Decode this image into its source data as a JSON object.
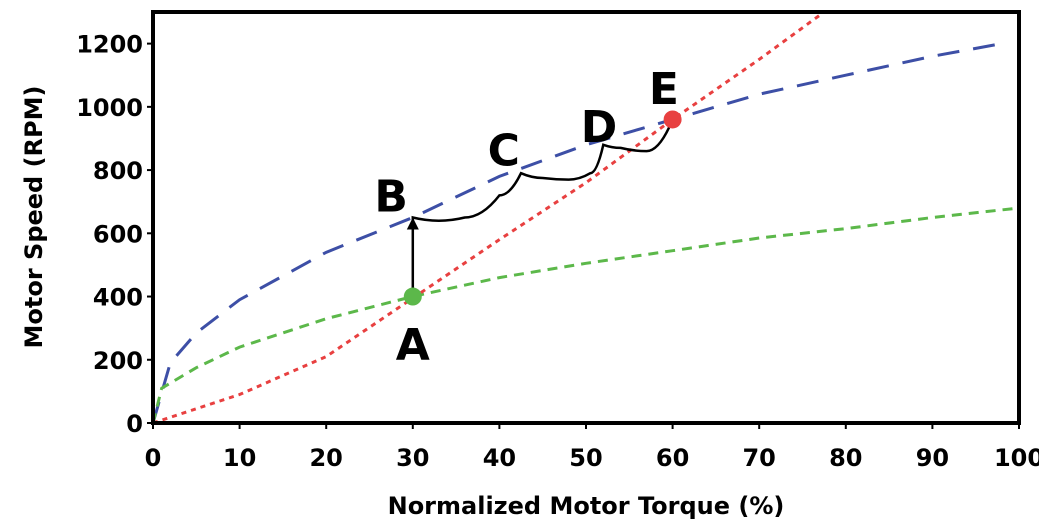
{
  "chart_data": {
    "type": "line",
    "xlabel": "Normalized Motor Torque (%)",
    "ylabel": "Motor Speed (RPM)",
    "xlim": [
      0,
      100
    ],
    "ylim": [
      0,
      1300
    ],
    "x_ticks": [
      0,
      10,
      20,
      30,
      40,
      50,
      60,
      70,
      80,
      90,
      100
    ],
    "y_ticks": [
      0,
      200,
      400,
      600,
      800,
      1000,
      1200
    ],
    "x_tick_labels": [
      "0",
      "10",
      "20",
      "30",
      "40",
      "50",
      "60",
      "70",
      "80",
      "90",
      "100"
    ],
    "y_tick_labels": [
      "0",
      "200",
      "400",
      "600",
      "800",
      "1000",
      "1200"
    ],
    "grid": false,
    "series": [
      {
        "color": "#3d4fa6",
        "dash": "long",
        "x": [
          0,
          2,
          5,
          10,
          20,
          30,
          40,
          50,
          60,
          70,
          80,
          90,
          98
        ],
        "y": [
          0,
          190,
          285,
          390,
          540,
          650,
          780,
          880,
          960,
          1040,
          1100,
          1160,
          1200
        ]
      },
      {
        "color": "#5cb84a",
        "dash": "medium",
        "x": [
          0,
          1,
          5,
          10,
          20,
          30,
          40,
          50,
          60,
          70,
          80,
          90,
          100
        ],
        "y": [
          0,
          110,
          175,
          240,
          330,
          400,
          460,
          505,
          545,
          585,
          615,
          650,
          680
        ]
      },
      {
        "color": "#e84040",
        "dash": "short",
        "x": [
          0,
          10,
          20,
          30,
          40,
          50,
          60,
          70,
          78
        ],
        "y": [
          0,
          90,
          210,
          395,
          580,
          760,
          960,
          1150,
          1310
        ]
      }
    ],
    "operating_path": {
      "color": "#000000",
      "x": [
        30,
        30,
        33,
        36,
        40,
        42.5,
        45,
        48,
        50.5,
        52,
        54,
        57,
        60
      ],
      "y": [
        400,
        650,
        640,
        650,
        720,
        790,
        775,
        770,
        790,
        880,
        870,
        860,
        960
      ]
    },
    "points": [
      {
        "label": "A",
        "x": 30,
        "y": 400,
        "color": "#5cb84a"
      },
      {
        "label": "E",
        "x": 60,
        "y": 960,
        "color": "#e84040"
      }
    ],
    "annotations": [
      {
        "label": "A",
        "x": 30,
        "y": 250
      },
      {
        "label": "B",
        "x": 27.5,
        "y": 720
      },
      {
        "label": "C",
        "x": 40.5,
        "y": 865
      },
      {
        "label": "D",
        "x": 51.5,
        "y": 940
      },
      {
        "label": "E",
        "x": 59,
        "y": 1060
      }
    ]
  }
}
